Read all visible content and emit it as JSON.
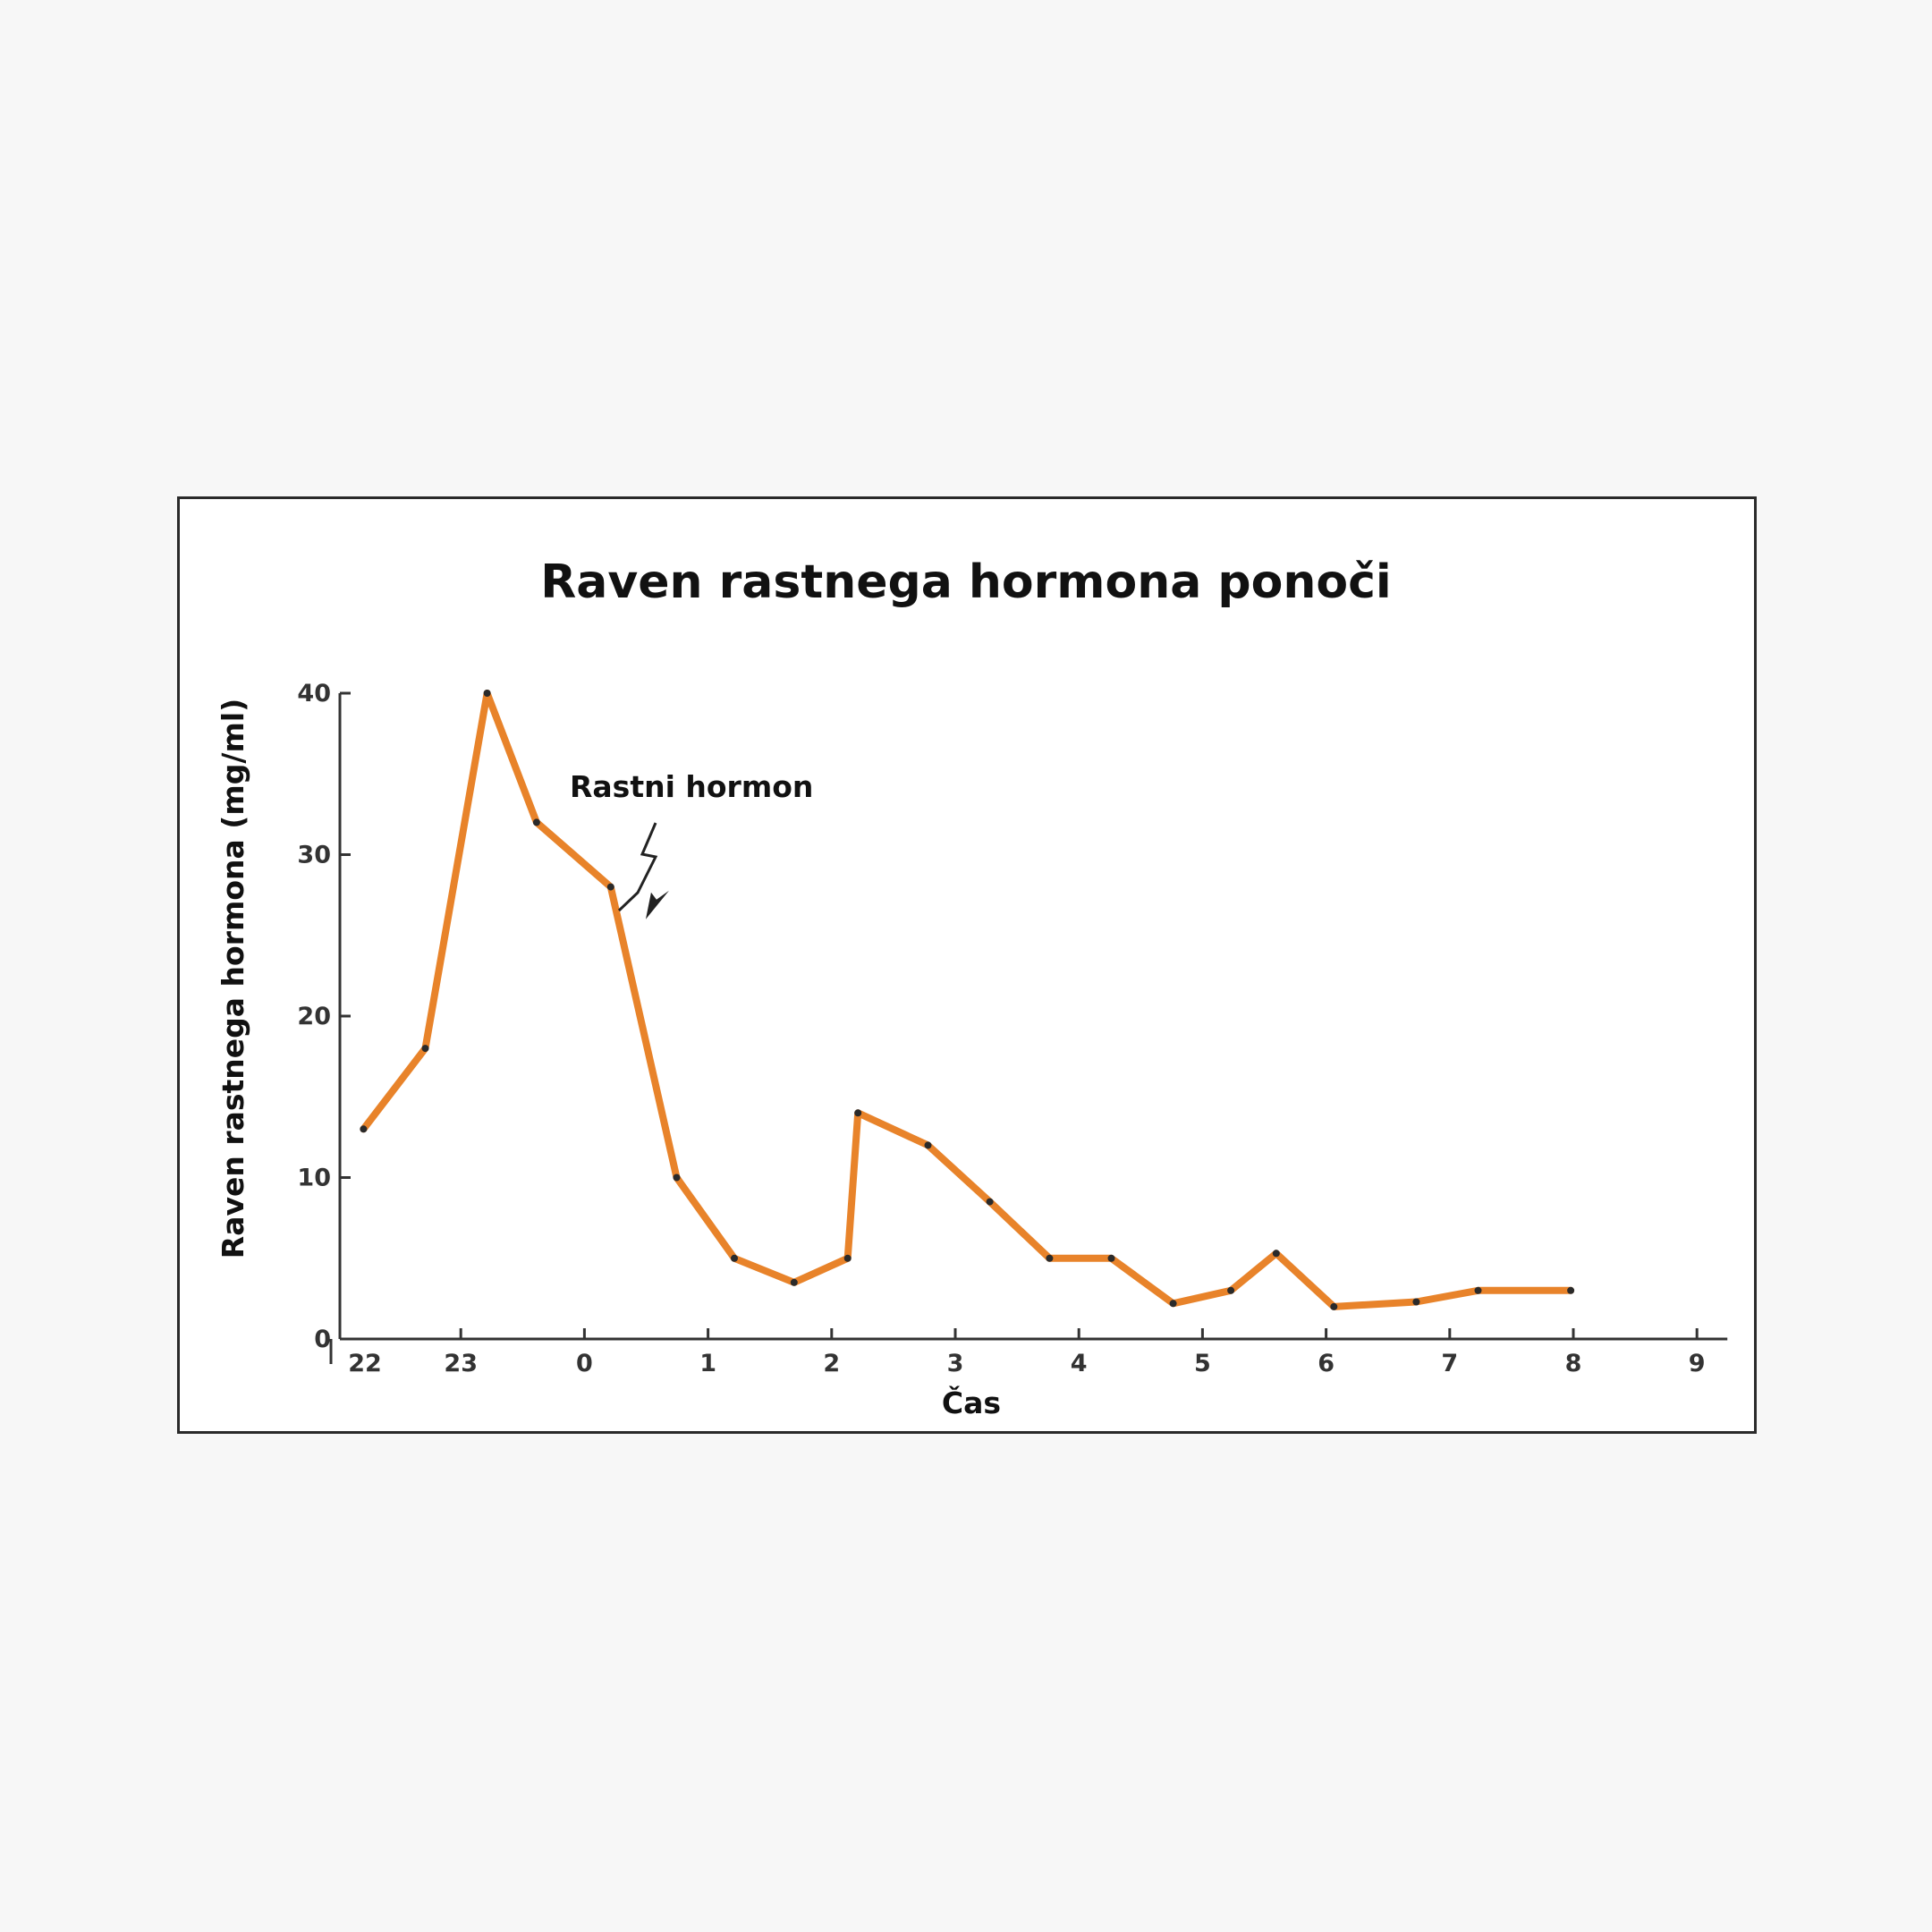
{
  "colors": {
    "page_background": "#f7f7f7",
    "chart_background": "#ffffff",
    "series_line": "#e8832a",
    "axis": "#333333",
    "marker": "#2a2a2a"
  },
  "chart_data": {
    "type": "line",
    "title": "Raven rastnega hormona ponoči",
    "xlabel": "Čas",
    "ylabel": "Raven rastnega hormona (mg/ml)",
    "x_tick_labels": [
      "22",
      "23",
      "0",
      "1",
      "2",
      "3",
      "4",
      "5",
      "6",
      "7",
      "8",
      "9"
    ],
    "y_ticks": [
      0,
      10,
      20,
      30,
      40
    ],
    "xlim": [
      "21:58",
      "09:00"
    ],
    "ylim": [
      0,
      40
    ],
    "grid": false,
    "legend": "none",
    "annotation": {
      "text": "Rastni hormon",
      "points_to": {
        "x": "00:15",
        "y": 26
      }
    },
    "series": [
      {
        "x": [
          "21:58",
          "22:28",
          "22:58",
          "23:22",
          "23:58",
          "00:30",
          "00:58",
          "01:27",
          "01:53",
          "01:58",
          "02:32",
          "03:02",
          "03:31",
          "04:01",
          "04:31",
          "04:59",
          "05:21",
          "05:49",
          "06:29",
          "06:59",
          "07:44"
        ],
        "values": [
          13,
          18,
          40,
          32,
          28,
          10,
          5,
          3.5,
          5,
          14,
          12,
          8.5,
          5,
          5,
          2.2,
          3,
          5.3,
          2,
          2.3,
          3,
          3
        ]
      }
    ]
  }
}
